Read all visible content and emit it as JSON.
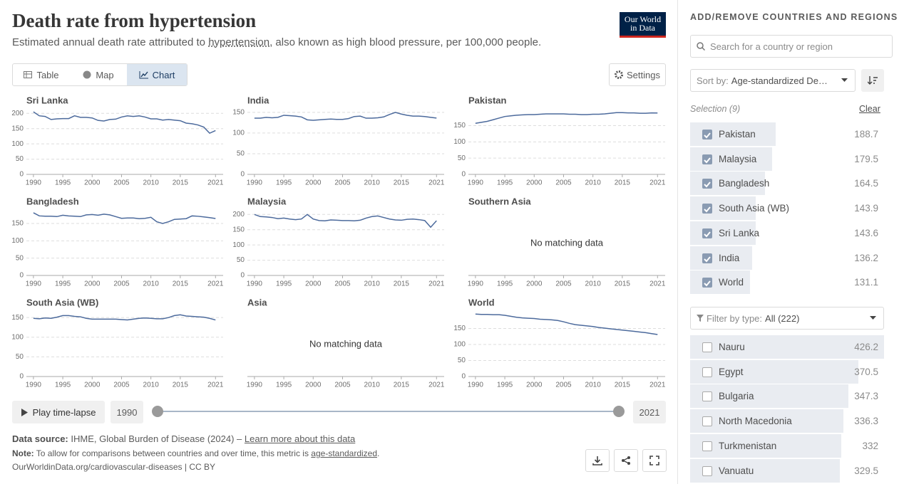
{
  "header": {
    "title": "Death rate from hypertension",
    "subtitle": {
      "before": "Estimated annual death rate attributed to ",
      "link": "hypertension",
      "after": ", also known as high blood pressure, per 100,000 people."
    },
    "logo": [
      "Our World",
      "in Data"
    ]
  },
  "tabs": [
    "Table",
    "Map",
    "Chart"
  ],
  "settings": "Settings",
  "chart_data": [
    {
      "type": "line",
      "title": "Sri Lanka",
      "x": [
        1990,
        1991,
        1992,
        1993,
        1994,
        1995,
        1996,
        1997,
        1998,
        1999,
        2000,
        2001,
        2002,
        2003,
        2004,
        2005,
        2006,
        2007,
        2008,
        2009,
        2010,
        2011,
        2012,
        2013,
        2014,
        2015,
        2016,
        2017,
        2018,
        2019,
        2020,
        2021
      ],
      "series": [
        {
          "color": "#4c6a9c",
          "values": [
            205,
            192,
            190,
            180,
            182,
            183,
            183,
            192,
            187,
            187,
            185,
            177,
            175,
            180,
            181,
            188,
            192,
            190,
            192,
            188,
            182,
            182,
            178,
            180,
            178,
            176,
            168,
            166,
            162,
            155,
            135,
            143.6
          ]
        }
      ],
      "xlim": [
        1988.8,
        2022.3
      ],
      "xticks": [
        1990,
        1995,
        2000,
        2005,
        2010,
        2015,
        2021
      ],
      "ylim": [
        0,
        210
      ],
      "yticks": [
        0,
        50,
        100,
        150,
        200
      ],
      "grid": true
    },
    {
      "type": "line",
      "title": "India",
      "x": [
        1990,
        1991,
        1992,
        1993,
        1994,
        1995,
        1996,
        1997,
        1998,
        1999,
        2000,
        2001,
        2002,
        2003,
        2004,
        2005,
        2006,
        2007,
        2008,
        2009,
        2010,
        2011,
        2012,
        2013,
        2014,
        2015,
        2016,
        2017,
        2018,
        2019,
        2020,
        2021
      ],
      "series": [
        {
          "color": "#4c6a9c",
          "values": [
            136,
            136,
            138,
            137,
            138,
            143,
            142,
            141,
            139,
            132,
            131,
            132,
            133,
            134,
            133,
            133,
            135,
            140,
            141,
            136,
            136,
            137,
            139,
            145,
            150,
            146,
            143,
            141,
            141,
            140,
            138,
            136.2
          ]
        }
      ],
      "xlim": [
        1988.8,
        2022.3
      ],
      "xticks": [
        1990,
        1995,
        2000,
        2005,
        2010,
        2015,
        2021
      ],
      "ylim": [
        0,
        155
      ],
      "yticks": [
        0,
        50,
        100,
        150
      ],
      "grid": true
    },
    {
      "type": "line",
      "title": "Pakistan",
      "x": [
        1990,
        1991,
        1992,
        1993,
        1994,
        1995,
        1996,
        1997,
        1998,
        1999,
        2000,
        2001,
        2002,
        2003,
        2004,
        2005,
        2006,
        2007,
        2008,
        2009,
        2010,
        2011,
        2012,
        2013,
        2014,
        2015,
        2016,
        2017,
        2018,
        2019,
        2020,
        2021
      ],
      "series": [
        {
          "color": "#4c6a9c",
          "values": [
            157,
            160,
            163,
            168,
            173,
            178,
            180,
            182,
            183,
            184,
            184,
            185,
            186,
            186,
            186,
            186,
            185,
            185,
            184,
            184,
            185,
            185,
            186,
            188,
            190,
            190,
            189,
            189,
            188,
            188,
            189,
            188.7
          ]
        }
      ],
      "xlim": [
        1988.8,
        2022.3
      ],
      "xticks": [
        1990,
        1995,
        2000,
        2005,
        2010,
        2015,
        2021
      ],
      "ylim": [
        0,
        197
      ],
      "yticks": [
        0,
        50,
        100,
        150
      ],
      "grid": true
    },
    {
      "type": "line",
      "title": "Bangladesh",
      "x": [
        1990,
        1991,
        1992,
        1993,
        1994,
        1995,
        1996,
        1997,
        1998,
        1999,
        2000,
        2001,
        2002,
        2003,
        2004,
        2005,
        2006,
        2007,
        2008,
        2009,
        2010,
        2011,
        2012,
        2013,
        2014,
        2015,
        2016,
        2017,
        2018,
        2019,
        2020,
        2021
      ],
      "series": [
        {
          "color": "#4c6a9c",
          "values": [
            181,
            172,
            171,
            171,
            170,
            174,
            172,
            171,
            170,
            175,
            176,
            174,
            177,
            175,
            170,
            165,
            166,
            166,
            164,
            165,
            168,
            155,
            150,
            155,
            162,
            163,
            164,
            172,
            171,
            169,
            167,
            164.5
          ]
        }
      ],
      "xlim": [
        1988.8,
        2022.3
      ],
      "xticks": [
        1990,
        1995,
        2000,
        2005,
        2010,
        2015,
        2021
      ],
      "ylim": [
        0,
        185
      ],
      "yticks": [
        0,
        50,
        100,
        150
      ],
      "grid": true
    },
    {
      "type": "line",
      "title": "Malaysia",
      "x": [
        1990,
        1991,
        1992,
        1993,
        1994,
        1995,
        1996,
        1997,
        1998,
        1999,
        2000,
        2001,
        2002,
        2003,
        2004,
        2005,
        2006,
        2007,
        2008,
        2009,
        2010,
        2011,
        2012,
        2013,
        2014,
        2015,
        2016,
        2017,
        2018,
        2019,
        2020,
        2021
      ],
      "series": [
        {
          "color": "#4c6a9c",
          "values": [
            200,
            193,
            192,
            190,
            186,
            188,
            185,
            183,
            185,
            200,
            185,
            180,
            179,
            182,
            181,
            180,
            180,
            179,
            181,
            188,
            193,
            195,
            190,
            185,
            182,
            181,
            184,
            185,
            183,
            180,
            158,
            179.5
          ]
        }
      ],
      "xlim": [
        1988.8,
        2022.3
      ],
      "xticks": [
        1990,
        1995,
        2000,
        2005,
        2010,
        2015,
        2021
      ],
      "ylim": [
        0,
        210
      ],
      "yticks": [
        0,
        50,
        100,
        150,
        200
      ],
      "grid": true
    },
    {
      "type": "line",
      "title": "Southern Asia",
      "note": "No matching data",
      "xlim": [
        1988.8,
        2022.3
      ],
      "xticks": [
        1990,
        1995,
        2000,
        2005,
        2010,
        2015,
        2021
      ]
    },
    {
      "type": "line",
      "title": "South Asia (WB)",
      "x": [
        1990,
        1991,
        1992,
        1993,
        1994,
        1995,
        1996,
        1997,
        1998,
        1999,
        2000,
        2001,
        2002,
        2003,
        2004,
        2005,
        2006,
        2007,
        2008,
        2009,
        2010,
        2011,
        2012,
        2013,
        2014,
        2015,
        2016,
        2017,
        2018,
        2019,
        2020,
        2021
      ],
      "series": [
        {
          "color": "#4c6a9c",
          "values": [
            148,
            147,
            149,
            148,
            151,
            155,
            155,
            153,
            152,
            148,
            146,
            146,
            146,
            146,
            146,
            145,
            144,
            146,
            148,
            149,
            148,
            147,
            147,
            150,
            155,
            157,
            154,
            153,
            152,
            151,
            148,
            143.9
          ]
        }
      ],
      "xlim": [
        1988.8,
        2022.3
      ],
      "xticks": [
        1990,
        1995,
        2000,
        2005,
        2010,
        2015,
        2021
      ],
      "ylim": [
        0,
        163
      ],
      "yticks": [
        0,
        50,
        100,
        150
      ],
      "grid": true
    },
    {
      "type": "line",
      "title": "Asia",
      "note": "No matching data",
      "xlim": [
        1988.8,
        2022.3
      ],
      "xticks": [
        1990,
        1995,
        2000,
        2005,
        2010,
        2015,
        2021
      ]
    },
    {
      "type": "line",
      "title": "World",
      "x": [
        1990,
        1991,
        1992,
        1993,
        1994,
        1995,
        1996,
        1997,
        1998,
        1999,
        2000,
        2001,
        2002,
        2003,
        2004,
        2005,
        2006,
        2007,
        2008,
        2009,
        2010,
        2011,
        2012,
        2013,
        2014,
        2015,
        2016,
        2017,
        2018,
        2019,
        2020,
        2021
      ],
      "series": [
        {
          "color": "#4c6a9c",
          "values": [
            195,
            194,
            194,
            193,
            193,
            191,
            188,
            185,
            183,
            182,
            181,
            179,
            178,
            177,
            175,
            171,
            166,
            162,
            160,
            158,
            156,
            153,
            151,
            149,
            147,
            145,
            143,
            141,
            139,
            137,
            134,
            131.1
          ]
        }
      ],
      "xlim": [
        1988.8,
        2022.3
      ],
      "xticks": [
        1990,
        1995,
        2000,
        2005,
        2010,
        2015,
        2021
      ],
      "ylim": [
        0,
        200
      ],
      "yticks": [
        0,
        50,
        100,
        150
      ],
      "grid": true
    }
  ],
  "timeline": {
    "play": "Play time-lapse",
    "start": "1990",
    "end": "2021"
  },
  "footer": {
    "source": {
      "label": "Data source:",
      "text": "IHME, Global Burden of Disease (2024) – ",
      "link": "Learn more about this data"
    },
    "note": {
      "label": "Note:",
      "text": "To allow for comparisons between countries and over time, this metric is ",
      "link": "age-standardized",
      "end": "."
    },
    "url": "OurWorldinData.org/cardiovascular-diseases | CC BY"
  },
  "sidebar": {
    "heading": "ADD/REMOVE COUNTRIES AND REGIONS",
    "search": "Search for a country or region",
    "sort": {
      "label": "Sort by:",
      "value": "Age-standardized De…"
    },
    "selection": "Selection (9)",
    "clear": "Clear",
    "selected": [
      {
        "name": "Pakistan",
        "value": 188.7
      },
      {
        "name": "Malaysia",
        "value": 179.5
      },
      {
        "name": "Bangladesh",
        "value": 164.5
      },
      {
        "name": "South Asia (WB)",
        "value": 143.9
      },
      {
        "name": "Sri Lanka",
        "value": 143.6
      },
      {
        "name": "India",
        "value": 136.2
      },
      {
        "name": "World",
        "value": 131.1
      }
    ],
    "filter": {
      "label": "Filter by type:",
      "value": "All (222)"
    },
    "others": [
      {
        "name": "Nauru",
        "value": 426.2
      },
      {
        "name": "Egypt",
        "value": 370.5
      },
      {
        "name": "Bulgaria",
        "value": 347.3
      },
      {
        "name": "North Macedonia",
        "value": 336.3
      },
      {
        "name": "Turkmenistan",
        "value": 332
      },
      {
        "name": "Vanuatu",
        "value": 329.5
      }
    ]
  }
}
